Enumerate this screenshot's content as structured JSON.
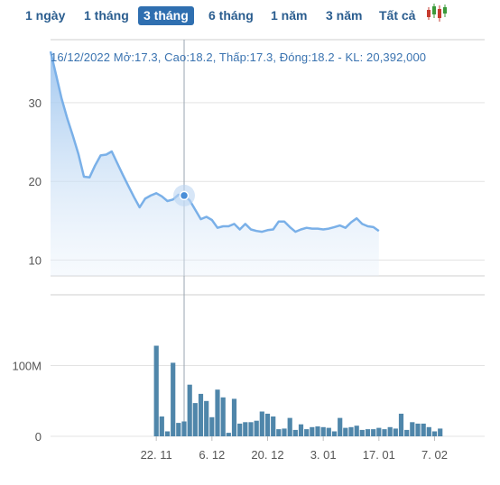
{
  "range_tabs": [
    {
      "label": "1 ngày",
      "active": false
    },
    {
      "label": "1 tháng",
      "active": false
    },
    {
      "label": "3 tháng",
      "active": true
    },
    {
      "label": "6 tháng",
      "active": false
    },
    {
      "label": "1 năm",
      "active": false
    },
    {
      "label": "3 năm",
      "active": false
    },
    {
      "label": "Tất cả",
      "active": false
    }
  ],
  "candle_icon": "candlestick-icon",
  "info_line": "16/12/2022 Mở:17.3, Cao:18.2, Thấp:17.3, Đóng:18.2 - KL: 20,392,000",
  "colors": {
    "price_line": "#7ab0e8",
    "price_fill_top": "#9cc4ee",
    "volume_bar": "#4f86aa",
    "grid": "#e3e3e3",
    "crosshair": "#9aa6b2",
    "active_tab": "#2f6fb0"
  },
  "chart_data": [
    {
      "type": "area",
      "ylim": [
        8,
        38
      ],
      "yticks": [
        10,
        20,
        30
      ],
      "ytick_labels": [
        "10",
        "20",
        "30"
      ],
      "x_range": [
        0,
        78
      ],
      "highlight_index": 24,
      "values": [
        36.5,
        33.5,
        30.5,
        28.0,
        25.8,
        23.5,
        20.6,
        20.5,
        22.0,
        23.3,
        23.4,
        23.8,
        22.3,
        20.8,
        19.4,
        18.0,
        16.7,
        17.8,
        18.2,
        18.5,
        18.1,
        17.5,
        17.7,
        18.3,
        18.2,
        17.6,
        16.4,
        15.2,
        15.5,
        15.1,
        14.1,
        14.3,
        14.3,
        14.6,
        13.9,
        14.6,
        13.9,
        13.7,
        13.6,
        13.8,
        13.9,
        14.9,
        14.9,
        14.2,
        13.6,
        13.9,
        14.1,
        14.0,
        14.0,
        13.9,
        14.0,
        14.2,
        14.4,
        14.1,
        14.8,
        15.3,
        14.6,
        14.3,
        14.2,
        13.7
      ]
    },
    {
      "type": "bar",
      "ylim": [
        0,
        200
      ],
      "yticks": [
        0,
        100
      ],
      "ytick_labels": [
        "0",
        "100M"
      ],
      "unit": "M",
      "bars": [
        {
          "x": 19,
          "v": 128
        },
        {
          "x": 20,
          "v": 28
        },
        {
          "x": 21,
          "v": 7
        },
        {
          "x": 22,
          "v": 104
        },
        {
          "x": 23,
          "v": 19
        },
        {
          "x": 24,
          "v": 21
        },
        {
          "x": 25,
          "v": 73
        },
        {
          "x": 26,
          "v": 47
        },
        {
          "x": 27,
          "v": 60
        },
        {
          "x": 28,
          "v": 50
        },
        {
          "x": 29,
          "v": 27
        },
        {
          "x": 30,
          "v": 66
        },
        {
          "x": 31,
          "v": 55
        },
        {
          "x": 32,
          "v": 5
        },
        {
          "x": 33,
          "v": 53
        },
        {
          "x": 34,
          "v": 18
        },
        {
          "x": 35,
          "v": 20
        },
        {
          "x": 36,
          "v": 20
        },
        {
          "x": 37,
          "v": 22
        },
        {
          "x": 38,
          "v": 35
        },
        {
          "x": 39,
          "v": 32
        },
        {
          "x": 40,
          "v": 28
        },
        {
          "x": 41,
          "v": 10
        },
        {
          "x": 42,
          "v": 11
        },
        {
          "x": 43,
          "v": 26
        },
        {
          "x": 44,
          "v": 9
        },
        {
          "x": 45,
          "v": 17
        },
        {
          "x": 46,
          "v": 10
        },
        {
          "x": 47,
          "v": 13
        },
        {
          "x": 48,
          "v": 14
        },
        {
          "x": 49,
          "v": 13
        },
        {
          "x": 50,
          "v": 12
        },
        {
          "x": 51,
          "v": 7
        },
        {
          "x": 52,
          "v": 26
        },
        {
          "x": 53,
          "v": 12
        },
        {
          "x": 54,
          "v": 13
        },
        {
          "x": 55,
          "v": 15
        },
        {
          "x": 56,
          "v": 9
        },
        {
          "x": 57,
          "v": 10
        },
        {
          "x": 58,
          "v": 10
        },
        {
          "x": 59,
          "v": 12
        },
        {
          "x": 60,
          "v": 10
        },
        {
          "x": 61,
          "v": 13
        },
        {
          "x": 62,
          "v": 11
        },
        {
          "x": 63,
          "v": 32
        },
        {
          "x": 64,
          "v": 9
        },
        {
          "x": 65,
          "v": 20
        },
        {
          "x": 66,
          "v": 18
        },
        {
          "x": 67,
          "v": 18
        },
        {
          "x": 68,
          "v": 13
        },
        {
          "x": 69,
          "v": 7
        },
        {
          "x": 70,
          "v": 11
        }
      ]
    }
  ],
  "x_axis": {
    "ticks": [
      {
        "x": 19,
        "label": "22. 11"
      },
      {
        "x": 29,
        "label": "6. 12"
      },
      {
        "x": 39,
        "label": "20. 12"
      },
      {
        "x": 49,
        "label": "3. 01"
      },
      {
        "x": 59,
        "label": "17. 01"
      },
      {
        "x": 69,
        "label": "7. 02"
      }
    ]
  }
}
